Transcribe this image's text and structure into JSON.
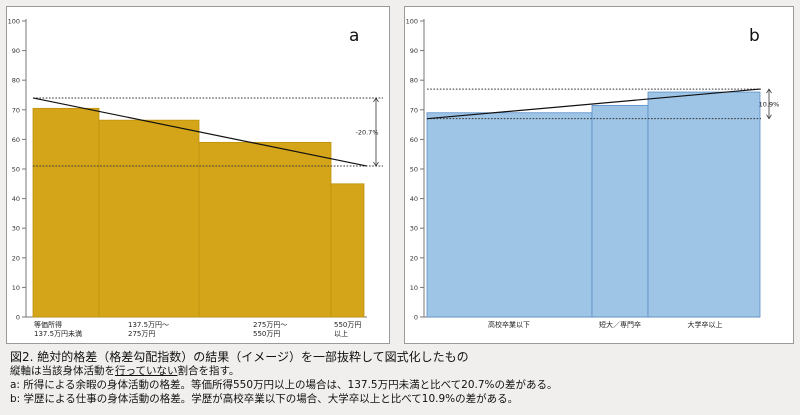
{
  "chart_data": [
    {
      "type": "bar",
      "panel_label": "a",
      "ylim": [
        0,
        100
      ],
      "yticks": [
        0,
        10,
        20,
        30,
        40,
        50,
        60,
        70,
        80,
        90,
        100
      ],
      "grid": false,
      "categories": [
        "等価所得\n137.5万円未満",
        "137.5万円～\n275万円",
        "275万円～\n550万円",
        "550万円\n以上"
      ],
      "values": [
        70.5,
        66.5,
        59,
        45
      ],
      "bar_color": "#d4a518",
      "trend_line": {
        "start": 74,
        "end": 51
      },
      "reference_lines": [
        74,
        51
      ],
      "difference_label": "-20.7%"
    },
    {
      "type": "bar",
      "panel_label": "b",
      "ylim": [
        0,
        100
      ],
      "yticks": [
        0,
        10,
        20,
        30,
        40,
        50,
        60,
        70,
        80,
        90,
        100
      ],
      "grid": false,
      "categories": [
        "高校卒業以下",
        "短大／専門卒",
        "大学卒以上"
      ],
      "values": [
        69,
        71.5,
        76
      ],
      "bar_color": "#9ec4e6",
      "trend_line": {
        "start": 67,
        "end": 77
      },
      "reference_lines": [
        77,
        67
      ],
      "difference_label": "10.9%"
    }
  ],
  "caption": {
    "title": "図2. 絶対的格差（格差勾配指数）の結果（イメージ）を一部抜粋して図式化したもの",
    "note_pre": "縦軸は当該身体活動を",
    "note_underline": "行っていない",
    "note_post": "割合を指す。",
    "line_a": "a: 所得による余暇の身体活動の格差。等価所得550万円以上の場合は、137.5万円未満と比べて20.7%の差がある。",
    "line_b": "b: 学歴による仕事の身体活動の格差。学歴が高校卒業以下の場合、大学卒以上と比べて10.9%の差がある。"
  }
}
